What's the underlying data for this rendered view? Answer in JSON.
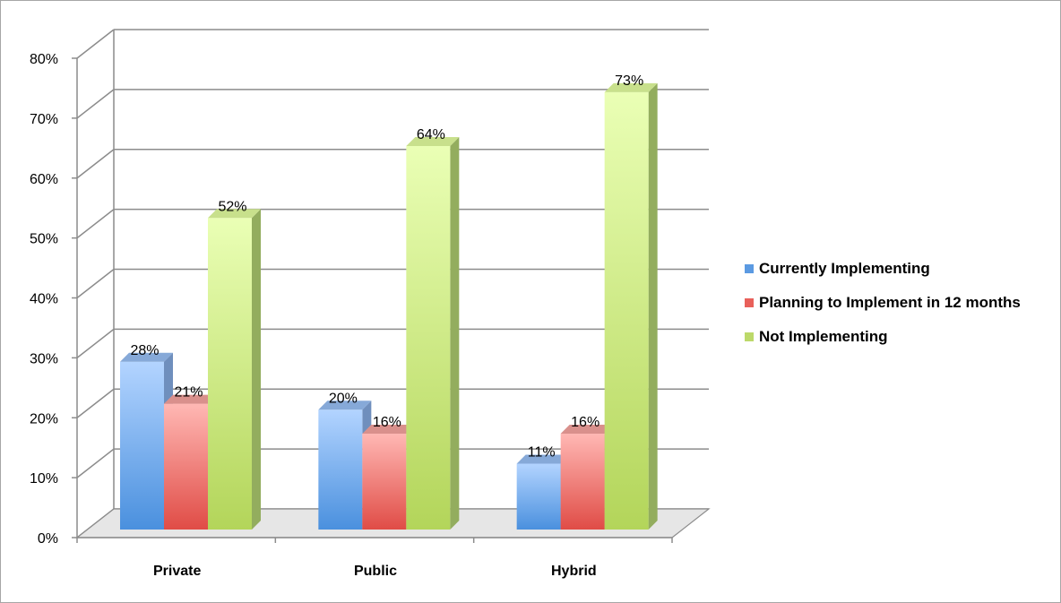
{
  "chart_data": {
    "type": "bar",
    "categories": [
      "Private",
      "Public",
      "Hybrid"
    ],
    "series": [
      {
        "name": "Currently Implementing",
        "values": [
          28,
          20,
          11
        ],
        "labels": [
          "28%",
          "20%",
          "11%"
        ],
        "color": "#6ea6e8"
      },
      {
        "name": "Planning to Implement in 12 months",
        "values": [
          21,
          16,
          16
        ],
        "labels": [
          "21%",
          "16%",
          "16%"
        ],
        "color": "#ec7c78"
      },
      {
        "name": "Not Implementing",
        "values": [
          52,
          64,
          73
        ],
        "labels": [
          "52%",
          "64%",
          "73%"
        ],
        "color": "#c6e07a"
      }
    ],
    "yticks": [
      "0%",
      "10%",
      "20%",
      "30%",
      "40%",
      "50%",
      "60%",
      "70%",
      "80%"
    ],
    "ylim": [
      0,
      80
    ],
    "grid": true,
    "legend_position": "right",
    "title": "",
    "xlabel": "",
    "ylabel": ""
  }
}
